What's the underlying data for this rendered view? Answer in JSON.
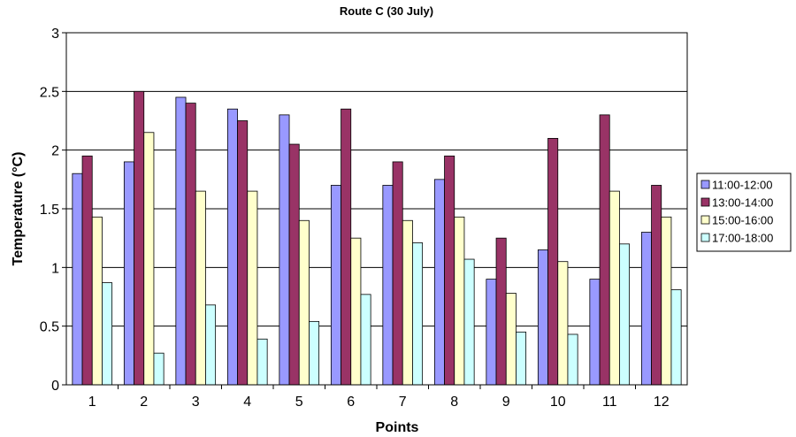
{
  "chart_data": {
    "type": "bar",
    "title": "Route C (30 July)",
    "xlabel": "Points",
    "ylabel": "Temperature (°C)",
    "ylim": [
      0,
      3
    ],
    "yticks": [
      0,
      0.5,
      1,
      1.5,
      2,
      2.5,
      3
    ],
    "ytick_labels": [
      "0",
      "0.5",
      "1",
      "1.5",
      "2",
      "2.5",
      "3"
    ],
    "grid": "horizontal",
    "legend": "right",
    "categories": [
      "1",
      "2",
      "3",
      "4",
      "5",
      "6",
      "7",
      "8",
      "9",
      "10",
      "11",
      "12"
    ],
    "series": [
      {
        "name": "11:00-12:00",
        "color": "#9999ff",
        "values": [
          1.8,
          1.9,
          2.45,
          2.35,
          2.3,
          1.7,
          1.7,
          1.75,
          0.9,
          1.15,
          0.9,
          1.3
        ]
      },
      {
        "name": "13:00-14:00",
        "color": "#993366",
        "values": [
          1.95,
          2.5,
          2.4,
          2.25,
          2.05,
          2.35,
          1.9,
          1.95,
          1.25,
          2.1,
          2.3,
          1.7
        ]
      },
      {
        "name": "15:00-16:00",
        "color": "#ffffcc",
        "values": [
          1.43,
          2.15,
          1.65,
          1.65,
          1.4,
          1.25,
          1.4,
          1.43,
          0.78,
          1.05,
          1.65,
          1.43
        ]
      },
      {
        "name": "17:00-18:00",
        "color": "#ccffff",
        "values": [
          0.87,
          0.27,
          0.68,
          0.39,
          0.54,
          0.77,
          1.21,
          1.07,
          0.45,
          0.43,
          1.2,
          0.81
        ]
      }
    ]
  }
}
